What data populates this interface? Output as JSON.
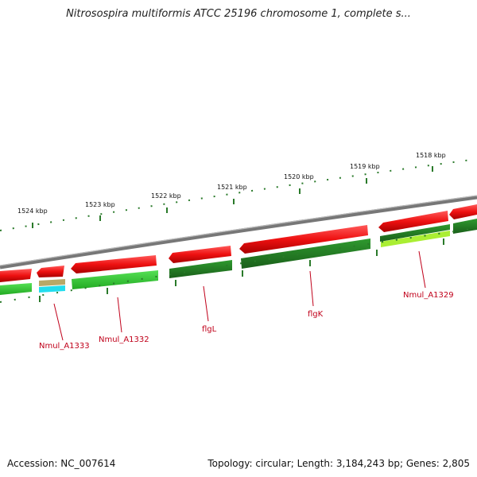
{
  "title": "Nitrosospira multiformis ATCC 25196 chromosome 1, complete s...",
  "footer": {
    "accession": "Accession: NC_007614",
    "summary": "Topology: circular; Length: 3,184,243 bp; Genes: 2,805"
  },
  "scale_ticks": [
    "1524 kbp",
    "1523 kbp",
    "1522 kbp",
    "1521 kbp",
    "1520 kbp",
    "1519 kbp",
    "1518 kbp"
  ],
  "gene_labels": [
    "Nmul_A1333",
    "Nmul_A1332",
    "flgL",
    "flgK",
    "Nmul_A1329"
  ],
  "colors": {
    "forward_cds": "#ee1111",
    "gene_dark_green": "#1f7a1f",
    "gene_light_green": "#33cc33",
    "gene_lime": "#aaee33",
    "gene_tan": "#b8a868",
    "gene_cyan": "#22ddee",
    "backbone": "#888888",
    "tick": "#2a7a2a"
  }
}
